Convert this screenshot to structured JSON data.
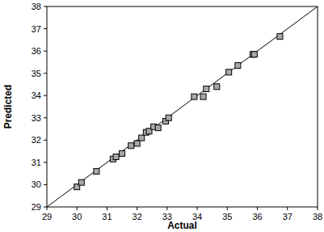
{
  "chart_data": {
    "type": "scatter",
    "x_label": "Actual",
    "y_label": "Predicted",
    "x": [
      30.0,
      30.15,
      30.65,
      31.2,
      31.3,
      31.5,
      31.8,
      32.0,
      32.15,
      32.3,
      32.4,
      32.55,
      32.7,
      32.95,
      33.05,
      33.9,
      34.2,
      34.3,
      34.65,
      35.05,
      35.35,
      35.85,
      35.9,
      36.75
    ],
    "values": [
      29.9,
      30.1,
      30.6,
      31.15,
      31.25,
      31.4,
      31.75,
      31.85,
      32.1,
      32.35,
      32.4,
      32.6,
      32.55,
      32.85,
      33.0,
      33.95,
      33.95,
      34.3,
      34.4,
      35.05,
      35.35,
      35.85,
      35.85,
      36.65
    ],
    "xlim": [
      29,
      38
    ],
    "ylim": [
      29,
      38
    ],
    "xticks": [
      29,
      30,
      31,
      32,
      33,
      34,
      35,
      36,
      37,
      38
    ],
    "yticks": [
      29,
      30,
      31,
      32,
      33,
      34,
      35,
      36,
      37,
      38
    ],
    "color": "#a8a8a8",
    "marker": "square",
    "grid": false
  }
}
